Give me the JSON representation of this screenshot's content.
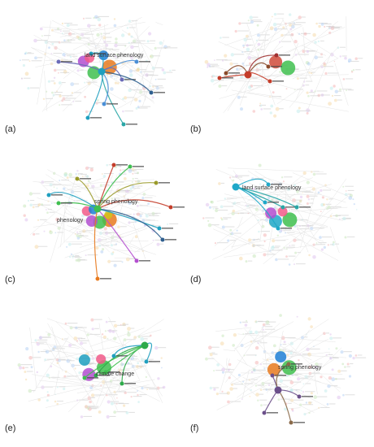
{
  "figure": {
    "panels": [
      {
        "id": "a",
        "label": "(a)",
        "highlight_color": "#1f9fbf",
        "labels": [
          "land surface phenology"
        ],
        "edge_colors": [
          "#1f9fbf",
          "#4a8fd6",
          "#6b6bb8",
          "#2f5f8f",
          "#2aa6a6"
        ],
        "dominant_node_colors": [
          "#e87a1e",
          "#3fbf4f",
          "#b44fd0",
          "#f25a8a",
          "#1f7fd6"
        ]
      },
      {
        "id": "b",
        "label": "(b)",
        "highlight_color": "#c43d2a",
        "labels": [],
        "edge_colors": [
          "#c43d2a",
          "#8a4a2a",
          "#a03030"
        ],
        "dominant_node_colors": [
          "#3fbf4f",
          "#d04a3a"
        ]
      },
      {
        "id": "c",
        "label": "(c)",
        "highlight_color": "#3fbf4f",
        "labels": [
          "spring phenology",
          "phenology"
        ],
        "edge_colors": [
          "#3fbf4f",
          "#9a9a2a",
          "#c43d2a",
          "#1f9fbf",
          "#2f5f8f",
          "#b44fd0",
          "#e87a1e"
        ],
        "dominant_node_colors": [
          "#e87a1e",
          "#3fbf4f",
          "#b44fd0",
          "#f25a8a",
          "#1f7fd6",
          "#d4c21a"
        ]
      },
      {
        "id": "d",
        "label": "(d)",
        "highlight_color": "#1fa8c8",
        "labels": [
          "land surface phenology"
        ],
        "edge_colors": [
          "#1fa8c8",
          "#2aa6a6"
        ],
        "dominant_node_colors": [
          "#3fbf4f",
          "#1fa8c8",
          "#b44fd0",
          "#f25a8a"
        ]
      },
      {
        "id": "e",
        "label": "(e)",
        "highlight_color": "#2eaa4a",
        "labels": [
          "climate change"
        ],
        "edge_colors": [
          "#2eaa4a",
          "#3fbf4f",
          "#1f9fbf"
        ],
        "dominant_node_colors": [
          "#3fbf4f",
          "#b44fd0",
          "#1f9fbf",
          "#f25a8a"
        ]
      },
      {
        "id": "f",
        "label": "(f)",
        "highlight_color": "#6b4f8a",
        "labels": [
          "spring phenology"
        ],
        "edge_colors": [
          "#6b4f8a",
          "#8a6a4a"
        ],
        "dominant_node_colors": [
          "#3fbf4f",
          "#e87a1e",
          "#1f7fd6"
        ]
      }
    ]
  }
}
